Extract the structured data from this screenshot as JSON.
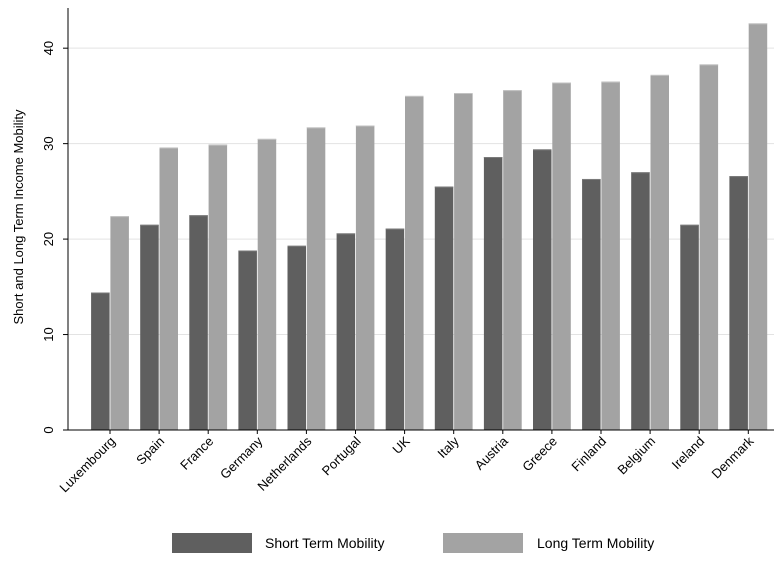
{
  "chart_data": {
    "type": "bar",
    "title": "",
    "xlabel": "",
    "ylabel": "Short and Long Term Income Mobility",
    "ylim": [
      0,
      44
    ],
    "yticks": [
      0,
      10,
      20,
      30,
      40
    ],
    "grid": true,
    "legend_position": "bottom",
    "categories": [
      "Luxembourg",
      "Spain",
      "France",
      "Germany",
      "Netherlands",
      "Portugal",
      "UK",
      "Italy",
      "Austria",
      "Greece",
      "Finland",
      "Belgium",
      "Ireland",
      "Denmark"
    ],
    "series": [
      {
        "name": "Short Term Mobility",
        "color": "#5f5f5f",
        "values": [
          14.4,
          21.5,
          22.5,
          18.8,
          19.3,
          20.6,
          21.1,
          25.5,
          28.6,
          29.4,
          26.3,
          27.0,
          21.5,
          26.6
        ]
      },
      {
        "name": "Long Term Mobility",
        "color": "#a3a3a3",
        "values": [
          22.4,
          29.6,
          29.9,
          30.5,
          31.7,
          31.9,
          35.0,
          35.3,
          35.6,
          36.4,
          36.5,
          37.2,
          38.3,
          42.6
        ]
      }
    ]
  }
}
